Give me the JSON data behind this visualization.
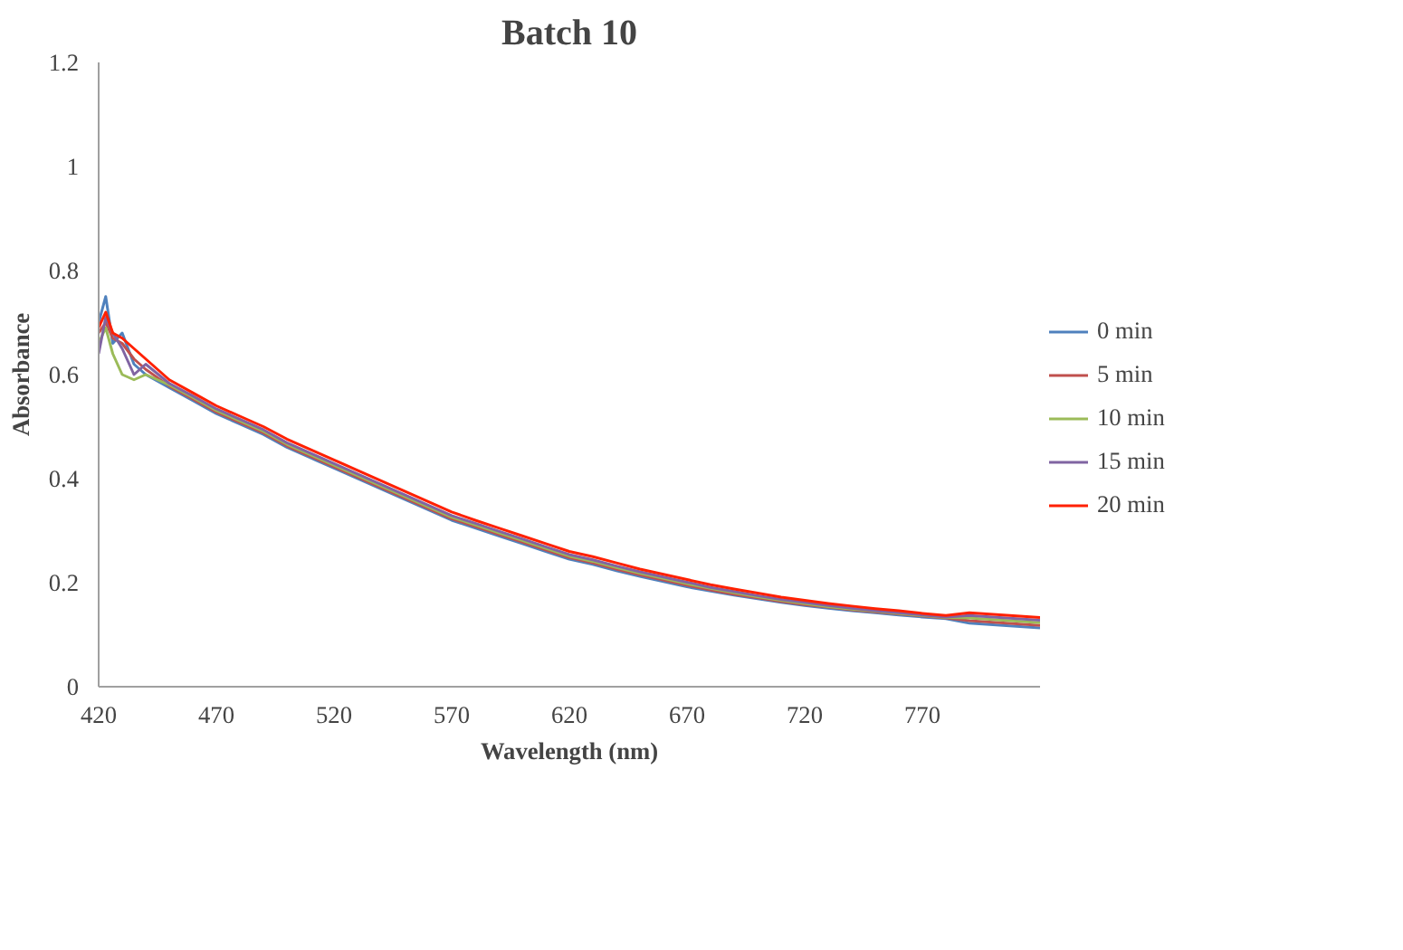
{
  "chart_data": {
    "type": "line",
    "title": "Batch 10",
    "xlabel": "Wavelength (nm)",
    "ylabel": "Absorbance",
    "x": [
      420,
      423,
      426,
      430,
      435,
      440,
      450,
      460,
      470,
      480,
      490,
      500,
      510,
      520,
      530,
      540,
      550,
      560,
      570,
      580,
      590,
      600,
      610,
      620,
      630,
      640,
      650,
      660,
      670,
      680,
      690,
      700,
      710,
      720,
      730,
      740,
      750,
      760,
      770,
      780,
      790,
      800,
      810,
      820
    ],
    "xlim": [
      420,
      820
    ],
    "ylim": [
      0,
      1.2
    ],
    "xticks": [
      420,
      470,
      520,
      570,
      620,
      670,
      720,
      770
    ],
    "yticks": [
      0,
      0.2,
      0.4,
      0.6,
      0.8,
      1,
      1.2
    ],
    "grid": false,
    "legend": "right",
    "marker": "none",
    "line_style": "solid",
    "series": [
      {
        "name": "0 min",
        "color": "#4f81bd",
        "values": [
          0.7,
          0.75,
          0.66,
          0.68,
          0.62,
          0.6,
          0.575,
          0.55,
          0.525,
          0.505,
          0.485,
          0.46,
          0.44,
          0.42,
          0.4,
          0.38,
          0.36,
          0.34,
          0.32,
          0.305,
          0.29,
          0.275,
          0.26,
          0.245,
          0.235,
          0.223,
          0.212,
          0.202,
          0.192,
          0.184,
          0.176,
          0.169,
          0.162,
          0.156,
          0.151,
          0.146,
          0.142,
          0.138,
          0.134,
          0.131,
          0.122,
          0.119,
          0.116,
          0.113
        ]
      },
      {
        "name": "5 min",
        "color": "#c0504d",
        "values": [
          0.68,
          0.7,
          0.67,
          0.66,
          0.63,
          0.61,
          0.578,
          0.553,
          0.528,
          0.508,
          0.488,
          0.463,
          0.443,
          0.423,
          0.403,
          0.383,
          0.363,
          0.343,
          0.323,
          0.308,
          0.293,
          0.278,
          0.263,
          0.248,
          0.238,
          0.226,
          0.215,
          0.205,
          0.195,
          0.186,
          0.178,
          0.171,
          0.164,
          0.158,
          0.153,
          0.148,
          0.144,
          0.14,
          0.136,
          0.132,
          0.127,
          0.124,
          0.121,
          0.118
        ]
      },
      {
        "name": "10 min",
        "color": "#9bbb59",
        "values": [
          0.66,
          0.69,
          0.64,
          0.6,
          0.59,
          0.6,
          0.58,
          0.556,
          0.531,
          0.511,
          0.491,
          0.466,
          0.446,
          0.426,
          0.406,
          0.386,
          0.366,
          0.346,
          0.326,
          0.311,
          0.296,
          0.281,
          0.266,
          0.251,
          0.241,
          0.229,
          0.218,
          0.208,
          0.198,
          0.189,
          0.181,
          0.173,
          0.166,
          0.16,
          0.154,
          0.149,
          0.145,
          0.141,
          0.137,
          0.133,
          0.132,
          0.129,
          0.126,
          0.123
        ]
      },
      {
        "name": "15 min",
        "color": "#8064a2",
        "values": [
          0.64,
          0.71,
          0.68,
          0.65,
          0.6,
          0.62,
          0.583,
          0.559,
          0.534,
          0.514,
          0.494,
          0.469,
          0.449,
          0.429,
          0.409,
          0.389,
          0.369,
          0.349,
          0.329,
          0.314,
          0.299,
          0.284,
          0.269,
          0.254,
          0.244,
          0.232,
          0.221,
          0.211,
          0.201,
          0.191,
          0.183,
          0.175,
          0.168,
          0.162,
          0.156,
          0.151,
          0.146,
          0.142,
          0.138,
          0.134,
          0.137,
          0.134,
          0.131,
          0.128
        ]
      },
      {
        "name": "20 min",
        "color": "#ff2000",
        "values": [
          0.69,
          0.72,
          0.68,
          0.67,
          0.65,
          0.63,
          0.59,
          0.565,
          0.54,
          0.52,
          0.5,
          0.476,
          0.456,
          0.436,
          0.416,
          0.396,
          0.376,
          0.356,
          0.336,
          0.32,
          0.305,
          0.29,
          0.275,
          0.26,
          0.25,
          0.238,
          0.226,
          0.216,
          0.206,
          0.196,
          0.188,
          0.18,
          0.172,
          0.166,
          0.16,
          0.155,
          0.15,
          0.146,
          0.141,
          0.137,
          0.142,
          0.139,
          0.136,
          0.133
        ]
      }
    ]
  }
}
